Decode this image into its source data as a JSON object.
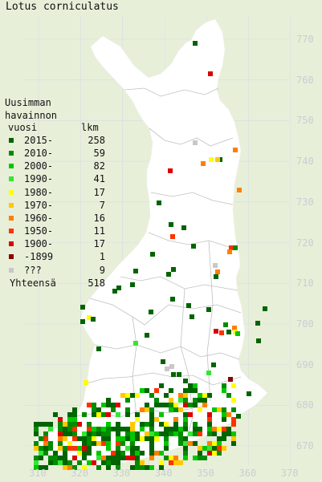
{
  "title": "Lotus corniculatus",
  "legend": {
    "heading_1": "Uusimman",
    "heading_2": "havainnon",
    "heading_3_left": "vuosi",
    "heading_3_right": "lkm",
    "items": [
      {
        "label": "2015-",
        "count": "258",
        "color": "#006400"
      },
      {
        "label": "2010-",
        "count": "59",
        "color": "#008c00"
      },
      {
        "label": "2000-",
        "count": "82",
        "color": "#00c800"
      },
      {
        "label": "1990-",
        "count": "41",
        "color": "#33e633"
      },
      {
        "label": "1980-",
        "count": "17",
        "color": "#ffff00"
      },
      {
        "label": "1970-",
        "count": "7",
        "color": "#ffc800"
      },
      {
        "label": "1960-",
        "count": "16",
        "color": "#ff7f00"
      },
      {
        "label": "1950-",
        "count": "11",
        "color": "#ff3200"
      },
      {
        "label": "1900-",
        "count": "17",
        "color": "#dc0000"
      },
      {
        "label": "-1899",
        "count": "1",
        "color": "#8b0000"
      },
      {
        "label": "???",
        "count": "9",
        "color": "#c8c8c8"
      }
    ],
    "total_label": "Yhteensä",
    "total_count": "518"
  },
  "axis_x": [
    "310",
    "320",
    "330",
    "340",
    "350",
    "360",
    "370"
  ],
  "axis_y": [
    "770",
    "760",
    "750",
    "740",
    "730",
    "720",
    "710",
    "700",
    "690",
    "680",
    "670"
  ],
  "colors": {
    "background": "#e8efd9",
    "land": "#ffffff",
    "borders": "#c0c0c0",
    "grid": "#d6dce4",
    "axis_text": "#c9cdd3"
  }
}
